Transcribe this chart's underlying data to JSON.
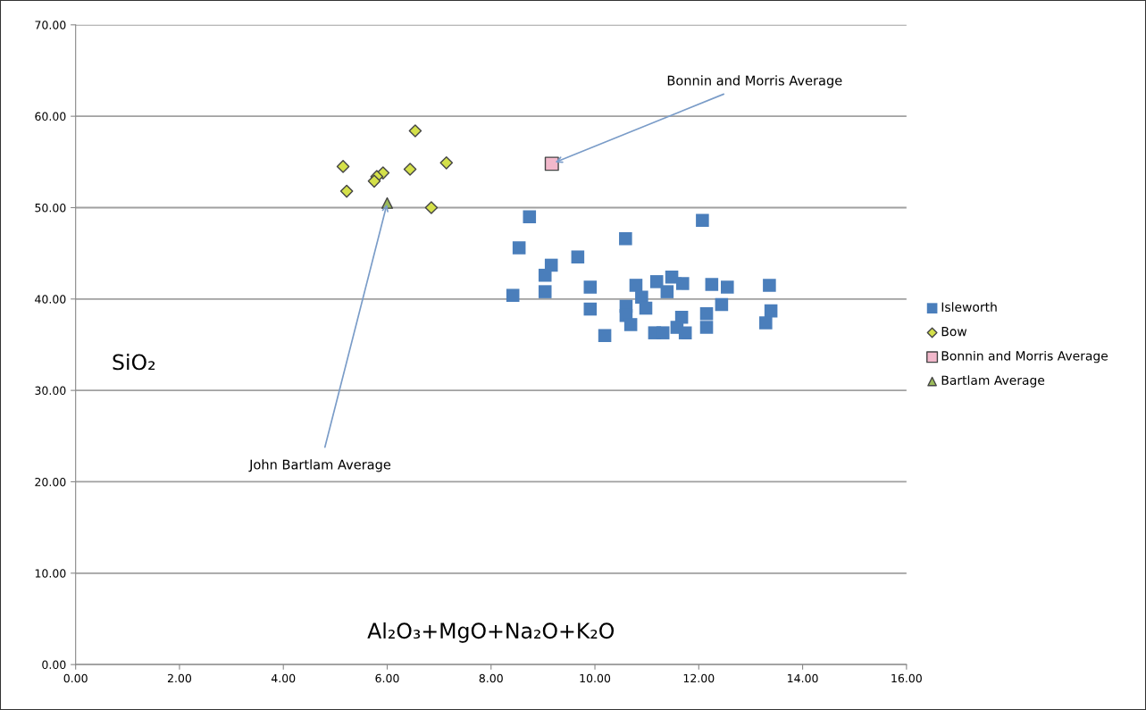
{
  "chart_data": {
    "type": "scatter",
    "xlabel": "Al₂O₃+MgO+Na₂O+K₂O",
    "ylabel": "SiO₂",
    "xlim": [
      0,
      16
    ],
    "xticks": [
      {
        "value": 0,
        "label": "0.00"
      },
      {
        "value": 2,
        "label": "2.00"
      },
      {
        "value": 4,
        "label": "4.00"
      },
      {
        "value": 6,
        "label": "6.00"
      },
      {
        "value": 8,
        "label": "8.00"
      },
      {
        "value": 10,
        "label": "10.00"
      },
      {
        "value": 12,
        "label": "12.00"
      },
      {
        "value": 14,
        "label": "14.00"
      },
      {
        "value": 16,
        "label": "16.00"
      }
    ],
    "ylim": [
      0,
      70
    ],
    "yticks": [
      {
        "value": 0,
        "label": "0.00"
      },
      {
        "value": 10,
        "label": "10.00"
      },
      {
        "value": 20,
        "label": "20.00"
      },
      {
        "value": 30,
        "label": "30.00"
      },
      {
        "value": 40,
        "label": "40.00"
      },
      {
        "value": 50,
        "label": "50.00"
      },
      {
        "value": 60,
        "label": "60.00"
      },
      {
        "value": 70,
        "label": "70.00"
      }
    ],
    "grid": "y",
    "legend": "right",
    "series": [
      {
        "name": "Isleworth",
        "color": "#4a7ebb",
        "marker": "square",
        "x": [
          8.74,
          8.54,
          8.42,
          9.16,
          9.04,
          9.04,
          9.67,
          9.91,
          9.91,
          10.19,
          10.59,
          10.79,
          10.9,
          10.98,
          10.6,
          10.6,
          10.69,
          11.19,
          11.15,
          11.31,
          11.48,
          11.39,
          11.69,
          11.67,
          11.58,
          11.74,
          12.07,
          12.25,
          12.55,
          12.44,
          12.15,
          12.15,
          13.36,
          13.39,
          13.29
        ],
        "values": [
          49.0,
          45.6,
          40.4,
          43.7,
          42.6,
          40.8,
          44.6,
          41.3,
          38.9,
          36.0,
          46.6,
          41.5,
          40.2,
          39.0,
          39.2,
          38.2,
          37.2,
          41.9,
          36.3,
          36.3,
          42.4,
          40.8,
          41.7,
          38.0,
          36.9,
          36.3,
          48.6,
          41.6,
          41.3,
          39.4,
          38.4,
          36.9,
          41.5,
          38.7,
          37.4
        ]
      },
      {
        "name": "Bow",
        "color": "#d4e04a",
        "marker": "diamond",
        "x": [
          6.54,
          7.14,
          6.44,
          5.92,
          5.8,
          5.75,
          6.85,
          5.15,
          5.22
        ],
        "values": [
          58.4,
          54.9,
          54.2,
          53.8,
          53.4,
          52.9,
          50.0,
          54.5,
          51.8
        ]
      },
      {
        "name": "Bonnin and Morris Average",
        "color": "#f2b8cb",
        "marker": "square",
        "x": [
          9.17
        ],
        "values": [
          54.8
        ]
      },
      {
        "name": "Bartlam Average",
        "color": "#9bbb59",
        "marker": "triangle",
        "x": [
          6.0
        ],
        "values": [
          50.5
        ]
      }
    ],
    "annotations": [
      {
        "text": "Bonnin and Morris Average",
        "x": 9.17,
        "y": 54.8
      },
      {
        "text": "John Bartlam Average",
        "x": 6.0,
        "y": 50.5
      }
    ]
  }
}
